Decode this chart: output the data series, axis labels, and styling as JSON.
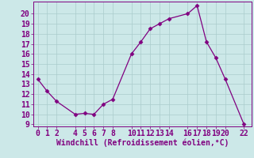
{
  "x": [
    0,
    1,
    2,
    4,
    5,
    6,
    7,
    8,
    10,
    11,
    12,
    13,
    14,
    16,
    17,
    18,
    19,
    20,
    22
  ],
  "y": [
    13.5,
    12.3,
    11.3,
    10.0,
    10.1,
    10.0,
    11.0,
    11.5,
    16.0,
    17.2,
    18.5,
    19.0,
    19.5,
    20.0,
    20.8,
    17.2,
    15.6,
    13.5,
    9.0
  ],
  "xlim": [
    -0.5,
    22.8
  ],
  "ylim": [
    8.8,
    21.2
  ],
  "yticks": [
    9,
    10,
    11,
    12,
    13,
    14,
    15,
    16,
    17,
    18,
    19,
    20
  ],
  "xticks": [
    0,
    1,
    2,
    4,
    5,
    6,
    7,
    8,
    10,
    11,
    12,
    13,
    14,
    16,
    17,
    18,
    19,
    20,
    22
  ],
  "xlabel": "Windchill (Refroidissement éolien,°C)",
  "line_color": "#800080",
  "marker": "D",
  "marker_size": 2.5,
  "bg_color": "#cce8e8",
  "grid_color": "#aacccc",
  "tick_fontsize": 7.0
}
